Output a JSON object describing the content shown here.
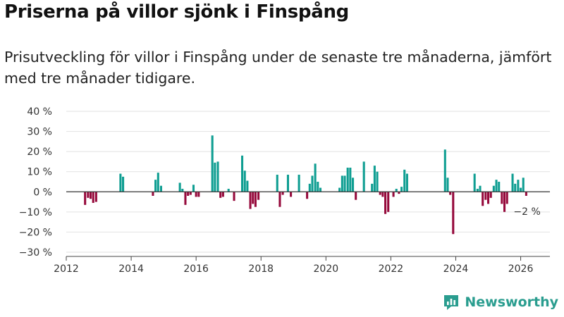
{
  "title": "Priserna på villor sjönk i Finspång",
  "subtitle": "Prisutveckling för villor i Finspång under de senaste tre månaderna, jämfört med tre månader tidigare.",
  "brand": {
    "name": "Newsworthy",
    "icon": "bar-chart-logo-icon"
  },
  "colors": {
    "positive": "#0f9e92",
    "negative": "#960a3c",
    "grid": "#e2e2e2",
    "axis": "#444444",
    "brand": "#2a9d8f"
  },
  "chart_data": {
    "type": "bar",
    "title": "Priserna på villor sjönk i Finspång",
    "xlabel": "",
    "ylabel": "",
    "xlim": [
      2012,
      2026.9
    ],
    "ylim": [
      -30,
      40
    ],
    "yticks": [
      {
        "value": 40,
        "label": "40 %"
      },
      {
        "value": 30,
        "label": "30 %"
      },
      {
        "value": 20,
        "label": "20 %"
      },
      {
        "value": 10,
        "label": "10 %"
      },
      {
        "value": 0,
        "label": "0 %"
      },
      {
        "value": -10,
        "label": "−10 %"
      },
      {
        "value": -20,
        "label": "−20 %"
      },
      {
        "value": -30,
        "label": "−30 %"
      }
    ],
    "xticks": [
      {
        "value": 2012,
        "label": "2012"
      },
      {
        "value": 2014,
        "label": "2014"
      },
      {
        "value": 2016,
        "label": "2016"
      },
      {
        "value": 2018,
        "label": "2018"
      },
      {
        "value": 2020,
        "label": "2020"
      },
      {
        "value": 2022,
        "label": "2022"
      },
      {
        "value": 2024,
        "label": "2024"
      },
      {
        "value": 2026,
        "label": "2026"
      }
    ],
    "series": [
      {
        "name": "Prisutveckling",
        "points": [
          {
            "x": 2012.58,
            "y": -6.5
          },
          {
            "x": 2012.67,
            "y": -3
          },
          {
            "x": 2012.75,
            "y": -3.5
          },
          {
            "x": 2012.83,
            "y": -5.5
          },
          {
            "x": 2012.92,
            "y": -5
          },
          {
            "x": 2013.67,
            "y": 9
          },
          {
            "x": 2013.75,
            "y": 7.5
          },
          {
            "x": 2014.67,
            "y": -2
          },
          {
            "x": 2014.75,
            "y": 6
          },
          {
            "x": 2014.83,
            "y": 9.5
          },
          {
            "x": 2014.92,
            "y": 3
          },
          {
            "x": 2015.5,
            "y": 4.5
          },
          {
            "x": 2015.58,
            "y": 1.5
          },
          {
            "x": 2015.67,
            "y": -6.5
          },
          {
            "x": 2015.75,
            "y": -2
          },
          {
            "x": 2015.83,
            "y": -1.5
          },
          {
            "x": 2015.92,
            "y": 3.5
          },
          {
            "x": 2016.0,
            "y": -2.5
          },
          {
            "x": 2016.08,
            "y": -2.5
          },
          {
            "x": 2016.5,
            "y": 28
          },
          {
            "x": 2016.58,
            "y": 14.5
          },
          {
            "x": 2016.67,
            "y": 15
          },
          {
            "x": 2016.75,
            "y": -3
          },
          {
            "x": 2016.83,
            "y": -2.5
          },
          {
            "x": 2017.0,
            "y": 1.5
          },
          {
            "x": 2017.17,
            "y": -4.5
          },
          {
            "x": 2017.42,
            "y": 18
          },
          {
            "x": 2017.5,
            "y": 10.5
          },
          {
            "x": 2017.58,
            "y": 5.5
          },
          {
            "x": 2017.67,
            "y": -8.5
          },
          {
            "x": 2017.75,
            "y": -6
          },
          {
            "x": 2017.83,
            "y": -7.5
          },
          {
            "x": 2017.92,
            "y": -4
          },
          {
            "x": 2018.5,
            "y": 8.5
          },
          {
            "x": 2018.58,
            "y": -7.5
          },
          {
            "x": 2018.67,
            "y": -1.5
          },
          {
            "x": 2018.83,
            "y": 8.5
          },
          {
            "x": 2018.92,
            "y": -2.5
          },
          {
            "x": 2019.17,
            "y": 8.5
          },
          {
            "x": 2019.42,
            "y": -3.5
          },
          {
            "x": 2019.5,
            "y": 4
          },
          {
            "x": 2019.58,
            "y": 8
          },
          {
            "x": 2019.67,
            "y": 14
          },
          {
            "x": 2019.75,
            "y": 5
          },
          {
            "x": 2019.83,
            "y": 2
          },
          {
            "x": 2020.42,
            "y": 2
          },
          {
            "x": 2020.5,
            "y": 8
          },
          {
            "x": 2020.58,
            "y": 8
          },
          {
            "x": 2020.67,
            "y": 12
          },
          {
            "x": 2020.75,
            "y": 12
          },
          {
            "x": 2020.83,
            "y": 7
          },
          {
            "x": 2020.92,
            "y": -4
          },
          {
            "x": 2021.17,
            "y": 15
          },
          {
            "x": 2021.42,
            "y": 4
          },
          {
            "x": 2021.5,
            "y": 13
          },
          {
            "x": 2021.58,
            "y": 10
          },
          {
            "x": 2021.67,
            "y": -1.5
          },
          {
            "x": 2021.75,
            "y": -2.5
          },
          {
            "x": 2021.83,
            "y": -11
          },
          {
            "x": 2021.92,
            "y": -10
          },
          {
            "x": 2022.08,
            "y": -2.5
          },
          {
            "x": 2022.17,
            "y": 1.5
          },
          {
            "x": 2022.25,
            "y": -1
          },
          {
            "x": 2022.33,
            "y": 2.5
          },
          {
            "x": 2022.42,
            "y": 11
          },
          {
            "x": 2022.5,
            "y": 9
          },
          {
            "x": 2023.67,
            "y": 21
          },
          {
            "x": 2023.75,
            "y": 7
          },
          {
            "x": 2023.83,
            "y": -1.5
          },
          {
            "x": 2023.92,
            "y": -21
          },
          {
            "x": 2024.58,
            "y": 9
          },
          {
            "x": 2024.67,
            "y": 1.5
          },
          {
            "x": 2024.75,
            "y": 3
          },
          {
            "x": 2024.83,
            "y": -7
          },
          {
            "x": 2024.92,
            "y": -4
          },
          {
            "x": 2025.0,
            "y": -6
          },
          {
            "x": 2025.08,
            "y": -3
          },
          {
            "x": 2025.17,
            "y": 3
          },
          {
            "x": 2025.25,
            "y": 6
          },
          {
            "x": 2025.33,
            "y": 5
          },
          {
            "x": 2025.42,
            "y": -6
          },
          {
            "x": 2025.5,
            "y": -10
          },
          {
            "x": 2025.58,
            "y": -6
          },
          {
            "x": 2025.75,
            "y": 9
          },
          {
            "x": 2025.83,
            "y": 4
          },
          {
            "x": 2025.92,
            "y": 6
          },
          {
            "x": 2026.0,
            "y": 2
          },
          {
            "x": 2026.08,
            "y": 7
          },
          {
            "x": 2026.17,
            "y": -2
          }
        ]
      }
    ],
    "annotation": {
      "x": 2026.17,
      "y": -2,
      "label": "−2 %"
    }
  }
}
